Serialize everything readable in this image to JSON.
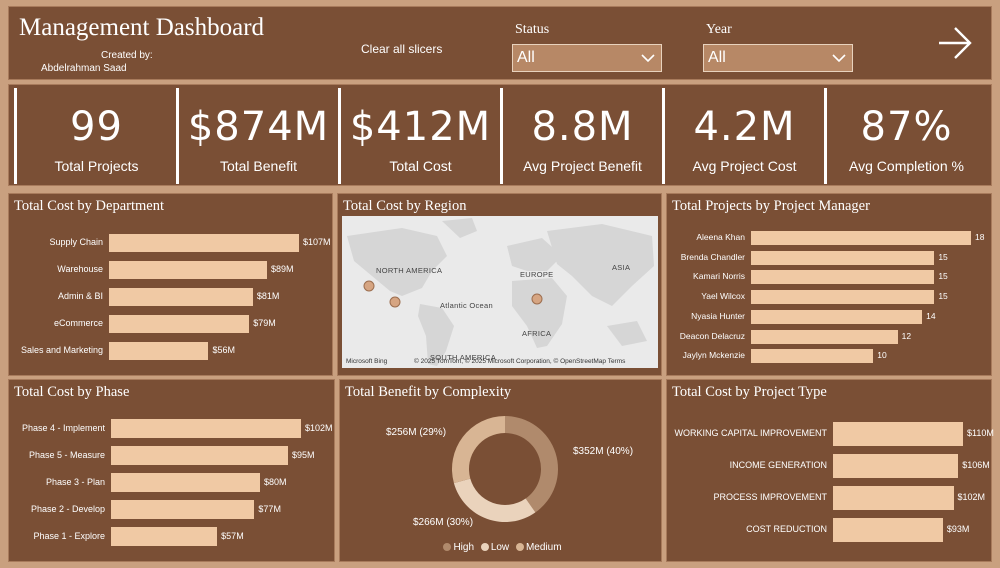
{
  "header": {
    "title": "Management Dashboard",
    "created_by_label": "Created by:",
    "author": "Abdelrahman Saad",
    "clear_slicers": "Clear all slicers",
    "status_label": "Status",
    "status_value": "All",
    "year_label": "Year",
    "year_value": "All",
    "nav_icon": "arrow-right-icon"
  },
  "kpis": [
    {
      "value": "99",
      "label": "Total Projects"
    },
    {
      "value": "$874M",
      "label": "Total Benefit"
    },
    {
      "value": "$412M",
      "label": "Total Cost"
    },
    {
      "value": "8.8M",
      "label": "Avg Project Benefit"
    },
    {
      "value": "4.2M",
      "label": "Avg Project Cost"
    },
    {
      "value": "87%",
      "label": "Avg Completion %"
    }
  ],
  "colors": {
    "background": "#c9a07f",
    "panel": "#7a4f35",
    "bar": "#f0c9a4"
  },
  "chart_data": [
    {
      "id": "dept",
      "type": "bar",
      "title": "Total Cost by Department",
      "categories": [
        "Supply Chain",
        "Warehouse",
        "Admin & BI",
        "eCommerce",
        "Sales and Marketing"
      ],
      "values": [
        107,
        89,
        81,
        79,
        56
      ],
      "value_labels": [
        "$107M",
        "$89M",
        "$81M",
        "$79M",
        "$56M"
      ]
    },
    {
      "id": "pm",
      "type": "bar",
      "title": "Total Projects by Project Manager",
      "categories": [
        "Aleena Khan",
        "Brenda Chandler",
        "Kamari Norris",
        "Yael Wilcox",
        "Nyasia Hunter",
        "Deacon Delacruz",
        "Jaylyn Mckenzie"
      ],
      "values": [
        18,
        15,
        15,
        15,
        14,
        12,
        10
      ],
      "value_labels": [
        "18",
        "15",
        "15",
        "15",
        "14",
        "12",
        "10"
      ]
    },
    {
      "id": "phase",
      "type": "bar",
      "title": "Total Cost by Phase",
      "categories": [
        "Phase 4 - Implement",
        "Phase 5 - Measure",
        "Phase 3 - Plan",
        "Phase 2 - Develop",
        "Phase 1 - Explore"
      ],
      "values": [
        102,
        95,
        80,
        77,
        57
      ],
      "value_labels": [
        "$102M",
        "$95M",
        "$80M",
        "$77M",
        "$57M"
      ]
    },
    {
      "id": "type",
      "type": "bar",
      "title": "Total Cost by Project Type",
      "categories": [
        "WORKING CAPITAL IMPROVEMENT",
        "INCOME GENERATION",
        "PROCESS IMPROVEMENT",
        "COST REDUCTION"
      ],
      "values": [
        110,
        106,
        102,
        93
      ],
      "value_labels": [
        "$110M",
        "$106M",
        "$102M",
        "$93M"
      ]
    },
    {
      "id": "complexity",
      "type": "pie",
      "title": "Total Benefit by Complexity",
      "categories": [
        "High",
        "Low",
        "Medium"
      ],
      "values": [
        352,
        266,
        256
      ],
      "value_labels": [
        "$352M (40%)",
        "$266M (30%)",
        "$256M (29%)"
      ],
      "colors": [
        "#b08a6c",
        "#ead3bc",
        "#d8b594"
      ]
    },
    {
      "id": "region",
      "type": "map",
      "title": "Total Cost by Region",
      "labels": [
        "NORTH AMERICA",
        "EUROPE",
        "ASIA",
        "Atlantic Ocean",
        "AFRICA",
        "SOUTH AMERICA"
      ],
      "attribution": "© 2025 TomTom, © 2025 Microsoft Corporation, © OpenStreetMap Terms",
      "brand": "Microsoft Bing"
    }
  ]
}
